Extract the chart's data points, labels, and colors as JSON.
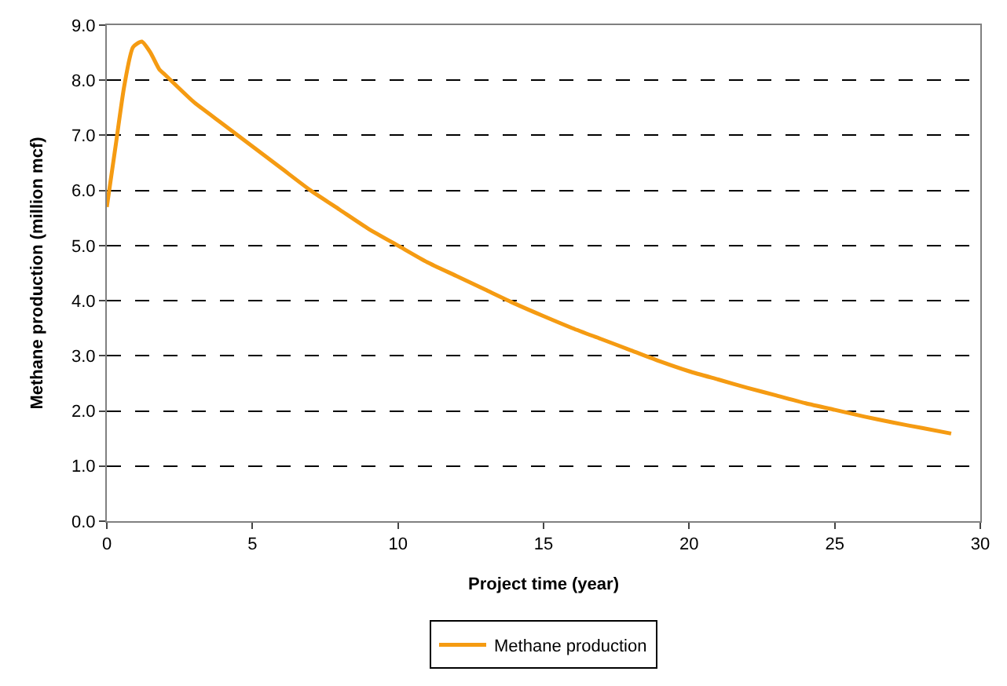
{
  "chart_data": {
    "type": "line",
    "xlabel": "Project time (year)",
    "ylabel": "Methane production (million mcf)",
    "x": [
      0,
      0.3,
      0.6,
      0.9,
      1.2,
      1.5,
      1.8,
      2,
      3,
      4,
      5,
      6,
      7,
      8,
      9,
      10,
      11,
      12,
      13,
      14,
      15,
      16,
      17,
      18,
      19,
      20,
      21,
      22,
      23,
      24,
      25,
      26,
      27,
      28,
      29
    ],
    "series": [
      {
        "name": "Methane production",
        "color": "#f59b12",
        "values": [
          5.7,
          6.8,
          7.9,
          8.6,
          8.7,
          8.5,
          8.2,
          8.1,
          7.6,
          7.2,
          6.8,
          6.4,
          6.0,
          5.65,
          5.3,
          5.0,
          4.7,
          4.45,
          4.2,
          3.95,
          3.72,
          3.5,
          3.3,
          3.1,
          2.9,
          2.72,
          2.57,
          2.42,
          2.28,
          2.14,
          2.02,
          1.9,
          1.79,
          1.69,
          1.59
        ]
      }
    ],
    "xlim": [
      0,
      30
    ],
    "xticks": [
      0,
      5,
      10,
      15,
      20,
      25,
      30
    ],
    "ylim": [
      0,
      9
    ],
    "yticks": [
      {
        "value": 0,
        "label": "0.0"
      },
      {
        "value": 1,
        "label": "1.0"
      },
      {
        "value": 2,
        "label": "2.0"
      },
      {
        "value": 3,
        "label": "3.0"
      },
      {
        "value": 4,
        "label": "4.0"
      },
      {
        "value": 5,
        "label": "5.0"
      },
      {
        "value": 6,
        "label": "6.0"
      },
      {
        "value": 7,
        "label": "7.0"
      },
      {
        "value": 8,
        "label": "8.0"
      },
      {
        "value": 9,
        "label": "9.0"
      }
    ],
    "grid": "y",
    "legend": "bottom",
    "marker": "none",
    "line_style": "solid"
  }
}
